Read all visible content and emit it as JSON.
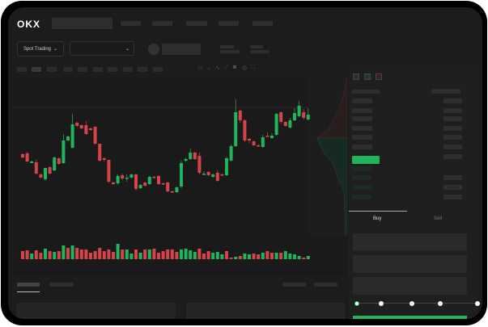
{
  "header": {
    "logo": "OKX",
    "nav_count": 5
  },
  "toolbar": {
    "market_button": "Spot Trading",
    "pair_select": "",
    "chevron": "chevron-down-icon"
  },
  "chart_icons": [
    "candle-type-icon",
    "indicator-icon",
    "line-tool-icon",
    "ruler-icon",
    "camera-icon",
    "settings-icon",
    "fullscreen-icon"
  ],
  "orderbook": {
    "view_icons": [
      "orderbook-both-icon",
      "orderbook-bids-icon",
      "orderbook-asks-icon"
    ]
  },
  "trade": {
    "tabs": [
      {
        "label": "Buy",
        "active": true
      },
      {
        "label": "Sell",
        "active": false
      }
    ],
    "slider_percent": 0,
    "slider_marks": [
      0,
      25,
      50,
      75,
      100
    ]
  },
  "colors": {
    "up": "#22b45c",
    "down": "#d8434a",
    "bg": "#1c1c1c",
    "accent": "#22b45c"
  },
  "chart_data": {
    "type": "candlestick",
    "candles": [
      [
        118,
        119,
        113,
        114
      ],
      [
        119,
        121,
        108,
        109
      ],
      [
        107,
        110,
        107,
        109
      ],
      [
        108,
        111,
        93,
        94
      ],
      [
        93,
        94,
        88,
        89
      ],
      [
        87,
        101,
        85,
        101
      ],
      [
        102,
        103,
        93,
        94
      ],
      [
        98,
        115,
        97,
        114
      ],
      [
        113,
        114,
        105,
        106
      ],
      [
        107,
        143,
        106,
        135
      ],
      [
        135,
        141,
        134,
        140
      ],
      [
        126,
        168,
        125,
        155
      ],
      [
        157,
        158,
        152,
        153
      ],
      [
        154,
        155,
        149,
        150
      ],
      [
        154,
        159,
        142,
        143
      ],
      [
        150,
        151,
        147,
        148
      ],
      [
        152,
        153,
        130,
        131
      ],
      [
        131,
        131,
        109,
        110
      ],
      [
        113,
        114,
        109,
        111
      ],
      [
        111,
        111,
        82,
        84
      ],
      [
        83,
        84,
        80,
        81
      ],
      [
        82,
        93,
        80,
        91
      ],
      [
        92,
        94,
        86,
        88
      ],
      [
        88,
        93,
        84,
        89
      ],
      [
        89,
        94,
        88,
        93
      ],
      [
        93,
        94,
        73,
        75
      ],
      [
        76,
        81,
        75,
        80
      ],
      [
        83,
        84,
        78,
        79
      ],
      [
        81,
        91,
        80,
        90
      ],
      [
        90,
        91,
        88,
        89
      ],
      [
        91,
        92,
        80,
        81
      ],
      [
        82,
        83,
        80,
        81
      ],
      [
        83,
        84,
        71,
        72
      ],
      [
        72,
        73,
        70,
        71
      ],
      [
        71,
        78,
        70,
        77
      ],
      [
        78,
        110,
        76,
        107
      ],
      [
        110,
        114,
        109,
        112
      ],
      [
        112,
        125,
        111,
        120
      ],
      [
        120,
        121,
        111,
        112
      ],
      [
        116,
        120,
        93,
        95
      ],
      [
        93,
        97,
        92,
        94
      ],
      [
        96,
        97,
        91,
        92
      ],
      [
        90,
        94,
        89,
        93
      ],
      [
        95,
        98,
        84,
        85
      ],
      [
        93,
        94,
        91,
        92
      ],
      [
        92,
        115,
        91,
        113
      ],
      [
        110,
        130,
        109,
        128
      ],
      [
        128,
        186,
        127,
        170
      ],
      [
        172,
        173,
        157,
        160
      ],
      [
        160,
        161,
        133,
        135
      ],
      [
        137,
        138,
        132,
        135
      ],
      [
        134,
        135,
        128,
        129
      ],
      [
        129,
        130,
        127,
        128
      ],
      [
        127,
        142,
        126,
        139
      ],
      [
        141,
        145,
        139,
        140
      ],
      [
        138,
        144,
        137,
        141
      ],
      [
        142,
        169,
        141,
        168
      ],
      [
        170,
        171,
        156,
        158
      ],
      [
        158,
        159,
        152,
        153
      ],
      [
        151,
        163,
        150,
        160
      ],
      [
        160,
        175,
        159,
        169
      ],
      [
        165,
        184,
        164,
        178
      ],
      [
        170,
        174,
        161,
        163
      ],
      [
        161,
        175,
        160,
        167
      ]
    ],
    "volume": [
      10,
      11,
      7,
      11,
      8,
      13,
      10,
      9,
      10,
      17,
      14,
      17,
      14,
      12,
      12,
      8,
      10,
      14,
      10,
      12,
      9,
      19,
      12,
      12,
      7,
      12,
      8,
      12,
      12,
      13,
      8,
      10,
      12,
      12,
      9,
      12,
      13,
      11,
      9,
      13,
      7,
      10,
      8,
      9,
      6,
      10,
      2,
      3,
      4,
      7,
      6,
      7,
      6,
      8,
      10,
      8,
      8,
      8,
      10,
      7,
      6,
      4,
      2,
      4
    ],
    "volume_colors": [
      "d",
      "d",
      "u",
      "d",
      "d",
      "u",
      "d",
      "u",
      "d",
      "u",
      "d",
      "u",
      "d",
      "d",
      "d",
      "d",
      "d",
      "d",
      "d",
      "d",
      "d",
      "u",
      "d",
      "u",
      "u",
      "d",
      "u",
      "d",
      "u",
      "d",
      "d",
      "d",
      "d",
      "d",
      "d",
      "u",
      "u",
      "u",
      "u",
      "d",
      "d",
      "d",
      "u",
      "u",
      "u",
      "d",
      "d",
      "u",
      "d",
      "u",
      "u",
      "d",
      "d",
      "u",
      "d",
      "d",
      "u",
      "d",
      "u",
      "u",
      "u",
      "u",
      "d",
      "u"
    ]
  }
}
